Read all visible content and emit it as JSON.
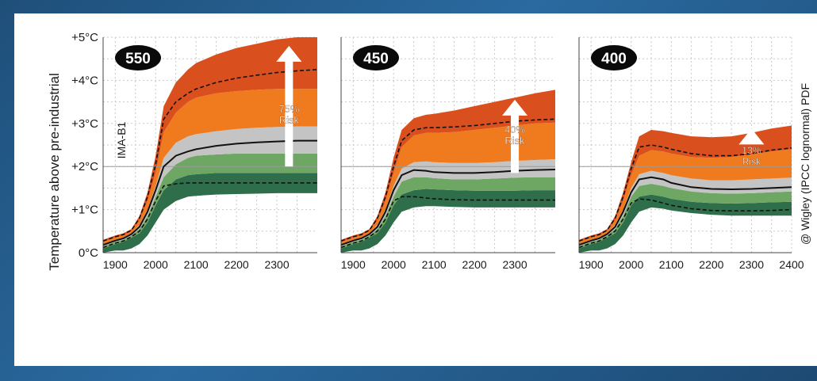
{
  "chart_data": [
    {
      "type": "area",
      "panel_label": "550",
      "scenario_label": "IMA-B1",
      "risk_text": [
        "75%",
        "Risk"
      ],
      "ylabel": "Temperature above pre-industrial",
      "y_ticks": [
        "0°C",
        "+1°C",
        "+2°C",
        "+3°C",
        "+4°C",
        "+5°C"
      ],
      "x_ticks": [
        "1900",
        "2000",
        "2100",
        "2200",
        "2300"
      ],
      "xlim": [
        1870,
        2400
      ],
      "ylim": [
        0,
        5
      ],
      "reference_line": 2,
      "x": [
        1870,
        1900,
        1920,
        1940,
        1960,
        1980,
        2000,
        2020,
        2050,
        2080,
        2100,
        2150,
        2200,
        2250,
        2300,
        2350,
        2400
      ],
      "bands": [
        {
          "lower": [
            0,
            0.05,
            0.05,
            0.1,
            0.2,
            0.4,
            0.7,
            1.0,
            1.2,
            1.3,
            1.32,
            1.35,
            1.36,
            1.37,
            1.38,
            1.38,
            1.38
          ],
          "upper": [
            0.1,
            0.2,
            0.25,
            0.35,
            0.45,
            0.7,
            1.1,
            1.45,
            1.7,
            1.8,
            1.82,
            1.85,
            1.85,
            1.85,
            1.85,
            1.85,
            1.85
          ]
        },
        {
          "lower": [
            0.1,
            0.2,
            0.25,
            0.35,
            0.45,
            0.7,
            1.1,
            1.45,
            1.7,
            1.8,
            1.82,
            1.85,
            1.85,
            1.85,
            1.85,
            1.85,
            1.85
          ],
          "upper": [
            0.15,
            0.25,
            0.3,
            0.4,
            0.55,
            0.85,
            1.3,
            1.75,
            2.05,
            2.2,
            2.25,
            2.28,
            2.3,
            2.3,
            2.3,
            2.3,
            2.3
          ]
        },
        {
          "lower": [
            0.15,
            0.25,
            0.3,
            0.4,
            0.55,
            0.85,
            1.3,
            1.75,
            2.05,
            2.2,
            2.25,
            2.28,
            2.3,
            2.3,
            2.3,
            2.3,
            2.3
          ],
          "upper": [
            0.2,
            0.3,
            0.35,
            0.45,
            0.65,
            1.0,
            1.55,
            2.2,
            2.55,
            2.7,
            2.75,
            2.82,
            2.87,
            2.9,
            2.92,
            2.93,
            2.93
          ]
        },
        {
          "lower": [
            0.2,
            0.3,
            0.35,
            0.45,
            0.65,
            1.0,
            1.55,
            2.2,
            2.55,
            2.7,
            2.75,
            2.82,
            2.87,
            2.9,
            2.92,
            2.93,
            2.93
          ],
          "upper": [
            0.25,
            0.35,
            0.4,
            0.5,
            0.75,
            1.2,
            1.85,
            2.8,
            3.25,
            3.5,
            3.6,
            3.7,
            3.75,
            3.78,
            3.8,
            3.8,
            3.8
          ]
        },
        {
          "lower": [
            0.25,
            0.35,
            0.4,
            0.5,
            0.75,
            1.2,
            1.85,
            2.8,
            3.25,
            3.5,
            3.6,
            3.7,
            3.75,
            3.78,
            3.8,
            3.8,
            3.8
          ],
          "upper": [
            0.3,
            0.4,
            0.45,
            0.55,
            0.85,
            1.4,
            2.25,
            3.4,
            3.95,
            4.25,
            4.4,
            4.6,
            4.75,
            4.85,
            4.95,
            5.0,
            5.0
          ]
        }
      ],
      "median": [
        0.18,
        0.28,
        0.33,
        0.43,
        0.6,
        0.95,
        1.45,
        2.0,
        2.25,
        2.35,
        2.4,
        2.48,
        2.53,
        2.56,
        2.58,
        2.6,
        2.6
      ],
      "dashed_low": [
        0.12,
        0.22,
        0.27,
        0.37,
        0.5,
        0.78,
        1.2,
        1.55,
        1.6,
        1.62,
        1.62,
        1.62,
        1.62,
        1.62,
        1.62,
        1.62,
        1.62
      ],
      "dashed_high": [
        0.27,
        0.37,
        0.42,
        0.52,
        0.8,
        1.3,
        2.05,
        3.1,
        3.5,
        3.7,
        3.8,
        3.95,
        4.05,
        4.12,
        4.18,
        4.22,
        4.25
      ]
    },
    {
      "type": "area",
      "panel_label": "450",
      "risk_text": [
        "40%",
        "Risk"
      ],
      "x_ticks": [
        "1900",
        "2000",
        "2100",
        "2200",
        "2300"
      ],
      "xlim": [
        1870,
        2400
      ],
      "ylim": [
        0,
        5
      ],
      "reference_line": 2,
      "x": [
        1870,
        1900,
        1920,
        1940,
        1960,
        1980,
        2000,
        2020,
        2050,
        2080,
        2100,
        2150,
        2200,
        2250,
        2300,
        2350,
        2400
      ],
      "bands": [
        {
          "lower": [
            0,
            0.05,
            0.05,
            0.1,
            0.2,
            0.4,
            0.7,
            0.95,
            1.05,
            1.08,
            1.08,
            1.06,
            1.05,
            1.05,
            1.05,
            1.05,
            1.05
          ],
          "upper": [
            0.1,
            0.2,
            0.25,
            0.35,
            0.45,
            0.7,
            1.1,
            1.35,
            1.45,
            1.48,
            1.47,
            1.45,
            1.44,
            1.44,
            1.44,
            1.45,
            1.45
          ]
        },
        {
          "lower": [
            0.1,
            0.2,
            0.25,
            0.35,
            0.45,
            0.7,
            1.1,
            1.35,
            1.45,
            1.48,
            1.47,
            1.45,
            1.44,
            1.44,
            1.44,
            1.45,
            1.45
          ],
          "upper": [
            0.15,
            0.25,
            0.3,
            0.4,
            0.55,
            0.85,
            1.3,
            1.65,
            1.75,
            1.75,
            1.73,
            1.7,
            1.7,
            1.72,
            1.74,
            1.75,
            1.75
          ]
        },
        {
          "lower": [
            0.15,
            0.25,
            0.3,
            0.4,
            0.55,
            0.85,
            1.3,
            1.65,
            1.75,
            1.75,
            1.73,
            1.7,
            1.7,
            1.72,
            1.74,
            1.75,
            1.75
          ],
          "upper": [
            0.2,
            0.3,
            0.35,
            0.45,
            0.65,
            1.0,
            1.55,
            1.95,
            2.1,
            2.12,
            2.1,
            2.08,
            2.08,
            2.1,
            2.13,
            2.15,
            2.17
          ]
        },
        {
          "lower": [
            0.2,
            0.3,
            0.35,
            0.45,
            0.65,
            1.0,
            1.55,
            1.95,
            2.1,
            2.12,
            2.1,
            2.08,
            2.08,
            2.1,
            2.13,
            2.15,
            2.17
          ],
          "upper": [
            0.25,
            0.35,
            0.4,
            0.5,
            0.75,
            1.2,
            1.85,
            2.45,
            2.72,
            2.78,
            2.78,
            2.8,
            2.85,
            2.9,
            2.95,
            3.0,
            3.02
          ]
        },
        {
          "lower": [
            0.25,
            0.35,
            0.4,
            0.5,
            0.75,
            1.2,
            1.85,
            2.45,
            2.72,
            2.78,
            2.78,
            2.8,
            2.85,
            2.9,
            2.95,
            3.0,
            3.02
          ],
          "upper": [
            0.3,
            0.4,
            0.45,
            0.55,
            0.85,
            1.4,
            2.2,
            2.85,
            3.12,
            3.2,
            3.22,
            3.3,
            3.4,
            3.5,
            3.6,
            3.7,
            3.78
          ]
        }
      ],
      "median": [
        0.18,
        0.28,
        0.33,
        0.43,
        0.6,
        0.95,
        1.45,
        1.8,
        1.92,
        1.9,
        1.87,
        1.85,
        1.85,
        1.87,
        1.9,
        1.92,
        1.93
      ],
      "dashed_low": [
        0.12,
        0.22,
        0.27,
        0.37,
        0.5,
        0.78,
        1.2,
        1.3,
        1.3,
        1.27,
        1.25,
        1.23,
        1.22,
        1.22,
        1.22,
        1.22,
        1.22
      ],
      "dashed_high": [
        0.27,
        0.37,
        0.42,
        0.52,
        0.8,
        1.3,
        2.0,
        2.6,
        2.85,
        2.9,
        2.9,
        2.92,
        2.95,
        3.0,
        3.05,
        3.08,
        3.1
      ]
    },
    {
      "type": "area",
      "panel_label": "400",
      "risk_text": [
        "13%",
        "Risk"
      ],
      "x_ticks": [
        "1900",
        "2000",
        "2100",
        "2200",
        "2300",
        "2400"
      ],
      "xlim": [
        1870,
        2400
      ],
      "ylim": [
        0,
        5
      ],
      "reference_line": 2,
      "x": [
        1870,
        1900,
        1920,
        1940,
        1960,
        1980,
        2000,
        2020,
        2050,
        2080,
        2100,
        2150,
        2200,
        2250,
        2300,
        2350,
        2400
      ],
      "bands": [
        {
          "lower": [
            0,
            0.05,
            0.05,
            0.1,
            0.2,
            0.4,
            0.7,
            0.95,
            1.05,
            1.02,
            0.98,
            0.92,
            0.88,
            0.86,
            0.86,
            0.86,
            0.86
          ],
          "upper": [
            0.1,
            0.2,
            0.25,
            0.35,
            0.45,
            0.7,
            1.1,
            1.3,
            1.35,
            1.3,
            1.25,
            1.18,
            1.15,
            1.14,
            1.15,
            1.17,
            1.18
          ]
        },
        {
          "lower": [
            0.1,
            0.2,
            0.25,
            0.35,
            0.45,
            0.7,
            1.1,
            1.3,
            1.35,
            1.3,
            1.25,
            1.18,
            1.15,
            1.14,
            1.15,
            1.17,
            1.18
          ],
          "upper": [
            0.15,
            0.25,
            0.3,
            0.4,
            0.55,
            0.85,
            1.3,
            1.55,
            1.6,
            1.55,
            1.5,
            1.42,
            1.38,
            1.37,
            1.38,
            1.4,
            1.42
          ]
        },
        {
          "lower": [
            0.15,
            0.25,
            0.3,
            0.4,
            0.55,
            0.85,
            1.3,
            1.55,
            1.6,
            1.55,
            1.5,
            1.42,
            1.38,
            1.37,
            1.38,
            1.4,
            1.42
          ],
          "upper": [
            0.2,
            0.3,
            0.35,
            0.45,
            0.65,
            1.0,
            1.5,
            1.82,
            1.9,
            1.85,
            1.8,
            1.72,
            1.68,
            1.68,
            1.7,
            1.72,
            1.74
          ]
        },
        {
          "lower": [
            0.2,
            0.3,
            0.35,
            0.45,
            0.65,
            1.0,
            1.5,
            1.82,
            1.9,
            1.85,
            1.8,
            1.72,
            1.68,
            1.68,
            1.7,
            1.72,
            1.74
          ],
          "upper": [
            0.25,
            0.35,
            0.4,
            0.5,
            0.75,
            1.2,
            1.8,
            2.25,
            2.38,
            2.35,
            2.3,
            2.22,
            2.2,
            2.22,
            2.28,
            2.35,
            2.4
          ]
        },
        {
          "lower": [
            0.25,
            0.35,
            0.4,
            0.5,
            0.75,
            1.2,
            1.8,
            2.25,
            2.38,
            2.35,
            2.3,
            2.22,
            2.2,
            2.22,
            2.28,
            2.35,
            2.4
          ],
          "upper": [
            0.3,
            0.4,
            0.45,
            0.55,
            0.85,
            1.4,
            2.1,
            2.7,
            2.85,
            2.82,
            2.78,
            2.7,
            2.68,
            2.7,
            2.78,
            2.88,
            2.95
          ]
        }
      ],
      "median": [
        0.18,
        0.28,
        0.33,
        0.43,
        0.6,
        0.95,
        1.4,
        1.7,
        1.75,
        1.7,
        1.62,
        1.52,
        1.48,
        1.47,
        1.48,
        1.5,
        1.52
      ],
      "dashed_low": [
        0.12,
        0.22,
        0.27,
        0.37,
        0.5,
        0.78,
        1.15,
        1.25,
        1.22,
        1.15,
        1.1,
        1.02,
        0.98,
        0.97,
        0.97,
        0.98,
        1.0
      ],
      "dashed_high": [
        0.27,
        0.37,
        0.42,
        0.52,
        0.8,
        1.3,
        1.95,
        2.45,
        2.5,
        2.45,
        2.4,
        2.3,
        2.25,
        2.25,
        2.3,
        2.38,
        2.43
      ]
    }
  ],
  "credit": "@ Wigley (IPCC lognormal) PDF",
  "colors": {
    "bands": [
      "#2f6e4a",
      "#6ea764",
      "#c4c4c4",
      "#f07b1f",
      "#d9501e"
    ],
    "background": "#1f4f79",
    "card": "#ffffff"
  }
}
